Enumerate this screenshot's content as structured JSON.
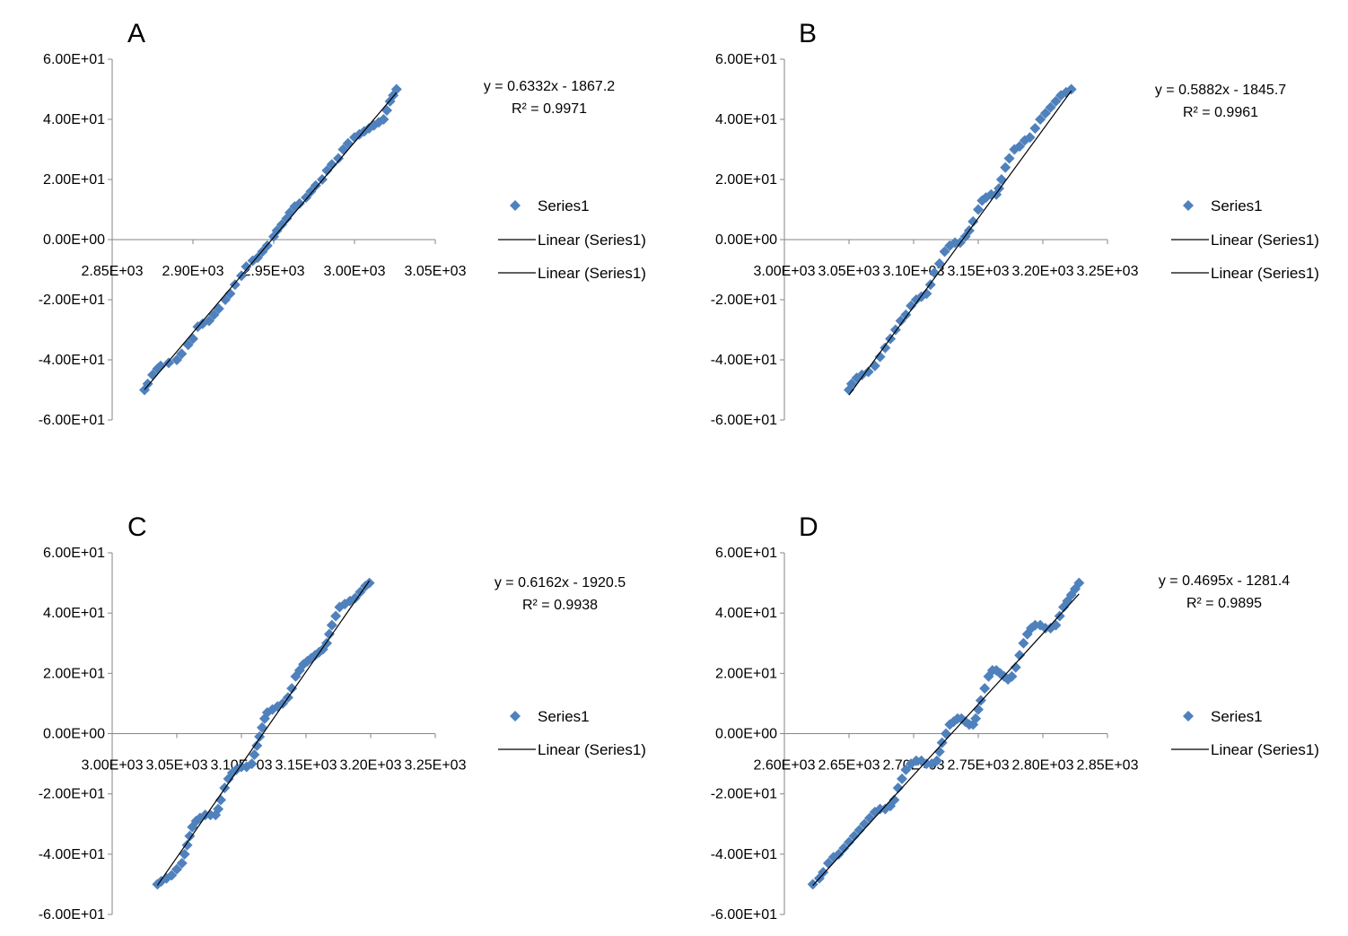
{
  "chart_data": [
    {
      "panel": "A",
      "type": "scatter",
      "xlim": [
        2850,
        3050
      ],
      "ylim": [
        -60,
        60
      ],
      "x_ticks": [
        "2.85E+03",
        "2.90E+03",
        "2.95E+03",
        "3.00E+03",
        "3.05E+03"
      ],
      "y_ticks": [
        "6.00E+01",
        "4.00E+01",
        "2.00E+01",
        "0.00E+00",
        "-2.00E+01",
        "-4.00E+01",
        "-6.00E+01"
      ],
      "trend_equation": "y = 0.6332x - 1867.2",
      "r_squared": "R² = 0.9971",
      "legend": [
        "Series1",
        "Linear (Series1)",
        "Linear (Series1)"
      ],
      "series": [
        {
          "name": "Series1",
          "color": "#4F81BD",
          "points": [
            [
              2870,
              -50
            ],
            [
              2872,
              -48
            ],
            [
              2875,
              -45
            ],
            [
              2878,
              -43
            ],
            [
              2880,
              -42
            ],
            [
              2885,
              -41
            ],
            [
              2890,
              -40
            ],
            [
              2893,
              -38
            ],
            [
              2897,
              -35
            ],
            [
              2900,
              -33
            ],
            [
              2903,
              -29
            ],
            [
              2906,
              -28
            ],
            [
              2910,
              -27
            ],
            [
              2913,
              -25
            ],
            [
              2916,
              -23
            ],
            [
              2920,
              -20
            ],
            [
              2923,
              -18
            ],
            [
              2926,
              -15
            ],
            [
              2930,
              -12
            ],
            [
              2933,
              -9
            ],
            [
              2937,
              -7
            ],
            [
              2940,
              -6
            ],
            [
              2943,
              -4
            ],
            [
              2946,
              -2
            ],
            [
              2950,
              1
            ],
            [
              2952,
              3
            ],
            [
              2955,
              5
            ],
            [
              2958,
              7
            ],
            [
              2960,
              9
            ],
            [
              2963,
              11
            ],
            [
              2966,
              12
            ],
            [
              2970,
              14
            ],
            [
              2973,
              16
            ],
            [
              2976,
              18
            ],
            [
              2980,
              20
            ],
            [
              2983,
              23
            ],
            [
              2986,
              25
            ],
            [
              2990,
              27
            ],
            [
              2993,
              30
            ],
            [
              2996,
              32
            ],
            [
              3000,
              34
            ],
            [
              3003,
              35
            ],
            [
              3006,
              36
            ],
            [
              3009,
              37
            ],
            [
              3012,
              38
            ],
            [
              3015,
              39
            ],
            [
              3018,
              40
            ],
            [
              3020,
              43
            ],
            [
              3022,
              46
            ],
            [
              3024,
              48
            ],
            [
              3026,
              50
            ]
          ]
        },
        {
          "name": "Linear (Series1)",
          "color": "#000000",
          "slope": 0.6332,
          "intercept": -1867.2
        }
      ]
    },
    {
      "panel": "B",
      "type": "scatter",
      "xlim": [
        3000,
        3250
      ],
      "ylim": [
        -60,
        60
      ],
      "x_ticks": [
        "3.00E+03",
        "3.05E+03",
        "3.10E+03",
        "3.15E+03",
        "3.20E+03",
        "3.25E+03"
      ],
      "y_ticks": [
        "6.00E+01",
        "4.00E+01",
        "2.00E+01",
        "0.00E+00",
        "-2.00E+01",
        "-4.00E+01",
        "-6.00E+01"
      ],
      "trend_equation": "y = 0.5882x - 1845.7",
      "r_squared": "R² = 0.9961",
      "legend": [
        "Series1",
        "Linear (Series1)",
        "Linear (Series1)"
      ],
      "series": [
        {
          "name": "Series1",
          "color": "#4F81BD",
          "points": [
            [
              3050,
              -50
            ],
            [
              3052,
              -48
            ],
            [
              3056,
              -46
            ],
            [
              3060,
              -45
            ],
            [
              3065,
              -44
            ],
            [
              3070,
              -42
            ],
            [
              3074,
              -39
            ],
            [
              3078,
              -36
            ],
            [
              3082,
              -33
            ],
            [
              3086,
              -30
            ],
            [
              3090,
              -27
            ],
            [
              3094,
              -25
            ],
            [
              3098,
              -22
            ],
            [
              3102,
              -20
            ],
            [
              3106,
              -19
            ],
            [
              3110,
              -18
            ],
            [
              3113,
              -15
            ],
            [
              3116,
              -11
            ],
            [
              3120,
              -8
            ],
            [
              3124,
              -4
            ],
            [
              3128,
              -2
            ],
            [
              3132,
              -1
            ],
            [
              3136,
              -1
            ],
            [
              3140,
              1
            ],
            [
              3143,
              3
            ],
            [
              3146,
              6
            ],
            [
              3150,
              10
            ],
            [
              3153,
              13
            ],
            [
              3156,
              14
            ],
            [
              3160,
              15
            ],
            [
              3164,
              15
            ],
            [
              3166,
              17
            ],
            [
              3168,
              20
            ],
            [
              3171,
              24
            ],
            [
              3174,
              27
            ],
            [
              3178,
              30
            ],
            [
              3182,
              31
            ],
            [
              3186,
              33
            ],
            [
              3190,
              34
            ],
            [
              3194,
              37
            ],
            [
              3198,
              40
            ],
            [
              3202,
              42
            ],
            [
              3206,
              44
            ],
            [
              3210,
              46
            ],
            [
              3214,
              48
            ],
            [
              3218,
              49
            ],
            [
              3222,
              50
            ]
          ]
        },
        {
          "name": "Linear (Series1)",
          "color": "#000000",
          "slope": 0.5882,
          "intercept": -1845.7
        }
      ]
    },
    {
      "panel": "C",
      "type": "scatter",
      "xlim": [
        3000,
        3250
      ],
      "ylim": [
        -60,
        60
      ],
      "x_ticks": [
        "3.00E+03",
        "3.05E+03",
        "3.10E+03",
        "3.15E+03",
        "3.20E+03",
        "3.25E+03"
      ],
      "y_ticks": [
        "6.00E+01",
        "4.00E+01",
        "2.00E+01",
        "0.00E+00",
        "-2.00E+01",
        "-4.00E+01",
        "-6.00E+01"
      ],
      "trend_equation": "y = 0.6162x - 1920.5",
      "r_squared": "R² = 0.9938",
      "legend": [
        "Series1",
        "Linear (Series1)"
      ],
      "series": [
        {
          "name": "Series1",
          "color": "#4F81BD",
          "points": [
            [
              3035,
              -50
            ],
            [
              3038,
              -49
            ],
            [
              3042,
              -48
            ],
            [
              3046,
              -47
            ],
            [
              3050,
              -45
            ],
            [
              3054,
              -43
            ],
            [
              3056,
              -40
            ],
            [
              3058,
              -37
            ],
            [
              3060,
              -34
            ],
            [
              3062,
              -31
            ],
            [
              3065,
              -29
            ],
            [
              3068,
              -28
            ],
            [
              3072,
              -27
            ],
            [
              3076,
              -27
            ],
            [
              3080,
              -27
            ],
            [
              3082,
              -25
            ],
            [
              3084,
              -22
            ],
            [
              3087,
              -18
            ],
            [
              3090,
              -15
            ],
            [
              3093,
              -13
            ],
            [
              3096,
              -12
            ],
            [
              3100,
              -11
            ],
            [
              3104,
              -11
            ],
            [
              3108,
              -10
            ],
            [
              3110,
              -7
            ],
            [
              3112,
              -4
            ],
            [
              3114,
              -1
            ],
            [
              3116,
              2
            ],
            [
              3118,
              5
            ],
            [
              3120,
              7
            ],
            [
              3124,
              8
            ],
            [
              3128,
              9
            ],
            [
              3132,
              10
            ],
            [
              3136,
              12
            ],
            [
              3139,
              15
            ],
            [
              3142,
              19
            ],
            [
              3145,
              21
            ],
            [
              3148,
              23
            ],
            [
              3151,
              24
            ],
            [
              3154,
              25
            ],
            [
              3157,
              26
            ],
            [
              3160,
              27
            ],
            [
              3163,
              28
            ],
            [
              3166,
              30
            ],
            [
              3168,
              33
            ],
            [
              3170,
              36
            ],
            [
              3173,
              39
            ],
            [
              3176,
              42
            ],
            [
              3180,
              43
            ],
            [
              3184,
              44
            ],
            [
              3188,
              45
            ],
            [
              3192,
              47
            ],
            [
              3196,
              49
            ],
            [
              3199,
              50
            ]
          ]
        },
        {
          "name": "Linear (Series1)",
          "color": "#000000",
          "slope": 0.6162,
          "intercept": -1920.5
        }
      ]
    },
    {
      "panel": "D",
      "type": "scatter",
      "xlim": [
        2600,
        2850
      ],
      "ylim": [
        -60,
        60
      ],
      "x_ticks": [
        "2.60E+03",
        "2.65E+03",
        "2.70E+03",
        "2.75E+03",
        "2.80E+03",
        "2.85E+03"
      ],
      "y_ticks": [
        "6.00E+01",
        "4.00E+01",
        "2.00E+01",
        "0.00E+00",
        "-2.00E+01",
        "-4.00E+01",
        "-6.00E+01"
      ],
      "trend_equation": "y = 0.4695x - 1281.4",
      "r_squared": "R² = 0.9895",
      "legend": [
        "Series1",
        "Linear (Series1)"
      ],
      "series": [
        {
          "name": "Series1",
          "color": "#4F81BD",
          "points": [
            [
              2622,
              -50
            ],
            [
              2627,
              -48
            ],
            [
              2630,
              -46
            ],
            [
              2634,
              -43
            ],
            [
              2638,
              -41
            ],
            [
              2642,
              -40
            ],
            [
              2646,
              -38
            ],
            [
              2650,
              -36
            ],
            [
              2654,
              -34
            ],
            [
              2658,
              -32
            ],
            [
              2662,
              -30
            ],
            [
              2666,
              -28
            ],
            [
              2670,
              -26
            ],
            [
              2674,
              -25
            ],
            [
              2678,
              -25
            ],
            [
              2682,
              -24
            ],
            [
              2685,
              -22
            ],
            [
              2688,
              -18
            ],
            [
              2691,
              -15
            ],
            [
              2694,
              -12
            ],
            [
              2698,
              -10
            ],
            [
              2702,
              -9
            ],
            [
              2706,
              -9
            ],
            [
              2710,
              -10
            ],
            [
              2714,
              -10
            ],
            [
              2718,
              -9
            ],
            [
              2720,
              -6
            ],
            [
              2722,
              -3
            ],
            [
              2725,
              0
            ],
            [
              2728,
              3
            ],
            [
              2731,
              4
            ],
            [
              2734,
              5
            ],
            [
              2737,
              5
            ],
            [
              2740,
              4
            ],
            [
              2743,
              3
            ],
            [
              2746,
              3
            ],
            [
              2748,
              5
            ],
            [
              2750,
              8
            ],
            [
              2752,
              11
            ],
            [
              2755,
              15
            ],
            [
              2758,
              19
            ],
            [
              2761,
              21
            ],
            [
              2764,
              21
            ],
            [
              2767,
              20
            ],
            [
              2770,
              19
            ],
            [
              2773,
              18
            ],
            [
              2776,
              19
            ],
            [
              2779,
              22
            ],
            [
              2782,
              26
            ],
            [
              2785,
              30
            ],
            [
              2788,
              33
            ],
            [
              2791,
              35
            ],
            [
              2794,
              36
            ],
            [
              2798,
              36
            ],
            [
              2802,
              35
            ],
            [
              2806,
              35
            ],
            [
              2810,
              36
            ],
            [
              2813,
              39
            ],
            [
              2816,
              42
            ],
            [
              2819,
              44
            ],
            [
              2822,
              46
            ],
            [
              2825,
              48
            ],
            [
              2828,
              50
            ]
          ]
        },
        {
          "name": "Linear (Series1)",
          "color": "#000000",
          "slope": 0.4695,
          "intercept": -1281.4
        }
      ]
    }
  ]
}
